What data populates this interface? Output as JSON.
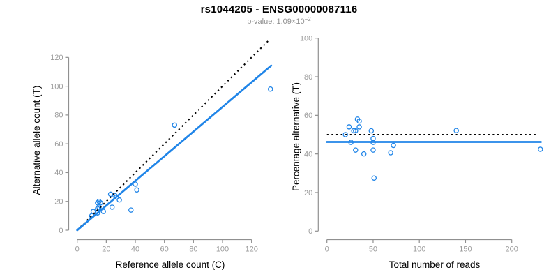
{
  "header": {
    "title": "rs1044205 - ENSG00000087116",
    "p_value": {
      "label": "p-value:",
      "value": "1.09",
      "times": "×10",
      "exponent": "−2"
    }
  },
  "colors": {
    "point_blue": "#2085E8",
    "line_blue": "#2085E8",
    "dotted_black": "#000000",
    "axis_gray": "#909090",
    "tick_label_gray": "#9B9B9B",
    "subtitle_gray": "#8F8F8F",
    "label_black": "#000000",
    "background": "#FFFFFF"
  },
  "chart_data": [
    {
      "id": "allele-counts",
      "type": "scatter",
      "title": "",
      "xlabel": "Reference allele count (C)",
      "ylabel": "Alternative allele count (T)",
      "xlim": [
        0,
        134
      ],
      "ylim": [
        0,
        133
      ],
      "xticks": [
        0,
        20,
        40,
        60,
        80,
        100,
        120
      ],
      "yticks": [
        0,
        20,
        40,
        60,
        80,
        100,
        120
      ],
      "grid": false,
      "legend": "none",
      "marker": "open-circle",
      "points": [
        [
          10,
          10
        ],
        [
          11,
          13
        ],
        [
          14,
          12
        ],
        [
          14,
          15
        ],
        [
          15,
          16
        ],
        [
          14,
          19
        ],
        [
          15,
          20
        ],
        [
          16,
          19
        ],
        [
          18,
          13
        ],
        [
          23,
          25
        ],
        [
          24,
          16
        ],
        [
          26,
          24
        ],
        [
          27,
          23
        ],
        [
          29,
          21
        ],
        [
          37,
          14
        ],
        [
          40,
          32
        ],
        [
          41,
          28
        ],
        [
          67,
          73
        ],
        [
          133,
          98
        ]
      ],
      "lines": [
        {
          "name": "identity-line",
          "style": "dotted",
          "color_ref": "dotted_black",
          "x1": 0,
          "y1": 0,
          "x2": 132,
          "y2": 132
        },
        {
          "name": "regression-line",
          "style": "solid",
          "color_ref": "line_blue",
          "x1": 0,
          "y1": 0,
          "x2": 133.5,
          "y2": 114.3
        }
      ]
    },
    {
      "id": "percentage-vs-reads",
      "type": "scatter",
      "title": "",
      "xlabel": "Total number of reads",
      "ylabel": "Percentage alternative (T)",
      "xlim": [
        0,
        233
      ],
      "ylim": [
        0,
        100
      ],
      "xticks": [
        0,
        50,
        100,
        150,
        200
      ],
      "yticks": [
        0,
        20,
        40,
        60,
        80,
        100
      ],
      "grid": false,
      "legend": "none",
      "marker": "open-circle",
      "points": [
        [
          20,
          50
        ],
        [
          24,
          54
        ],
        [
          26,
          46
        ],
        [
          29,
          52
        ],
        [
          31,
          52
        ],
        [
          31,
          42
        ],
        [
          33,
          58
        ],
        [
          35,
          57
        ],
        [
          35,
          54
        ],
        [
          40,
          40
        ],
        [
          48,
          52
        ],
        [
          50,
          48
        ],
        [
          50,
          46
        ],
        [
          50,
          42
        ],
        [
          51,
          27.5
        ],
        [
          69,
          40.6
        ],
        [
          72,
          44.4
        ],
        [
          140,
          52.1
        ],
        [
          231,
          42.4
        ]
      ],
      "lines": [
        {
          "name": "expected-50-percent-line",
          "style": "dotted",
          "color_ref": "dotted_black",
          "x1": 0,
          "y1": 50,
          "x2": 227,
          "y2": 50
        },
        {
          "name": "fitted-percentage-line",
          "style": "solid",
          "color_ref": "line_blue",
          "x1": 0,
          "y1": 46.2,
          "x2": 231.5,
          "y2": 46.2
        }
      ]
    }
  ]
}
